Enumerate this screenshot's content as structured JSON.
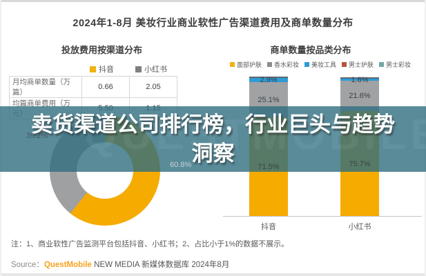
{
  "header": {
    "title": "2024年1-8月 美妆行业商业软性广告渠道费用及商单数量分布"
  },
  "left_panel": {
    "subtitle": "投放费用按渠道分布",
    "legend": [
      {
        "label": "抖音",
        "color": "#EFB310"
      },
      {
        "label": "小红书",
        "color": "#7F7F7F"
      }
    ],
    "table": {
      "rows": [
        {
          "label": "月均商单数量（万篇）",
          "douyin": "0.66",
          "xiaohongshu": "2.05"
        },
        {
          "label": "均篇商单费用（万元）",
          "douyin": "5.50",
          "xiaohongshu": "1.15"
        }
      ]
    },
    "donut_labels": {
      "douyin": "60.8%",
      "xiaohongshu": "39.2%"
    }
  },
  "right_panel": {
    "subtitle": "商单数量按品类分布",
    "legend": [
      {
        "label": "面部护肤",
        "color": "#EFB310"
      },
      {
        "label": "香水彩妆",
        "color": "#8C8C8C"
      },
      {
        "label": "美妆工具",
        "color": "#2E9BD6"
      },
      {
        "label": "男士护肤",
        "color": "#B5543C"
      },
      {
        "label": "男士彩妆",
        "color": "#6FA8A3"
      }
    ],
    "x_labels": [
      "抖音",
      "小红书"
    ]
  },
  "overlay": {
    "line1": "卖货渠道公司排行榜，行业巨头与趋势",
    "line2": "洞察",
    "watermark": "QUESTMOBILE",
    "band_color": "#306E7F"
  },
  "footer": {
    "note": "注：1、商业软性广告监测平台包括抖音、小红书；2、占比小于1%的数据不展示。",
    "source_prefix": "Source：",
    "source_brand": "QuestMobile",
    "source_rest": " NEW MEDIA 新媒体数据库 2024年8月"
  },
  "chart_data": [
    {
      "type": "pie",
      "subtype": "donut",
      "title": "投放费用按渠道分布",
      "labels": [
        "抖音",
        "小红书"
      ],
      "values": [
        60.8,
        39.2
      ],
      "unit": "%",
      "colors": [
        "#F5AB00",
        "#9EA0A2"
      ],
      "start_angle_deg": 0,
      "direction": "clockwise",
      "legend_position": "top"
    },
    {
      "type": "bar",
      "subtype": "stacked-percent",
      "title": "商单数量按品类分布",
      "categories": [
        "抖音",
        "小红书"
      ],
      "series": [
        {
          "name": "面部护肤",
          "color": "#F5AB00",
          "values": [
            71.5,
            75.7
          ]
        },
        {
          "name": "香水彩妆",
          "color": "#A0A2A4",
          "values": [
            25.1,
            21.6
          ]
        },
        {
          "name": "美妆工具",
          "color": "#2E9BD6",
          "values": [
            2.9,
            1.6
          ]
        },
        {
          "name": "男士护肤",
          "color": "#B5543C",
          "values": [
            null,
            null
          ]
        },
        {
          "name": "男士彩妆",
          "color": "#6FA8A3",
          "values": [
            null,
            null
          ]
        }
      ],
      "unit": "%",
      "ylim": [
        0,
        100
      ],
      "note": "占比小于1%的数据不展示",
      "legend_position": "top"
    },
    {
      "type": "table",
      "columns": [
        "",
        "抖音",
        "小红书"
      ],
      "rows": [
        [
          "月均商单数量（万篇）",
          "0.66",
          "2.05"
        ],
        [
          "均篇商单费用（万元）",
          "5.50",
          "1.15"
        ]
      ]
    }
  ]
}
